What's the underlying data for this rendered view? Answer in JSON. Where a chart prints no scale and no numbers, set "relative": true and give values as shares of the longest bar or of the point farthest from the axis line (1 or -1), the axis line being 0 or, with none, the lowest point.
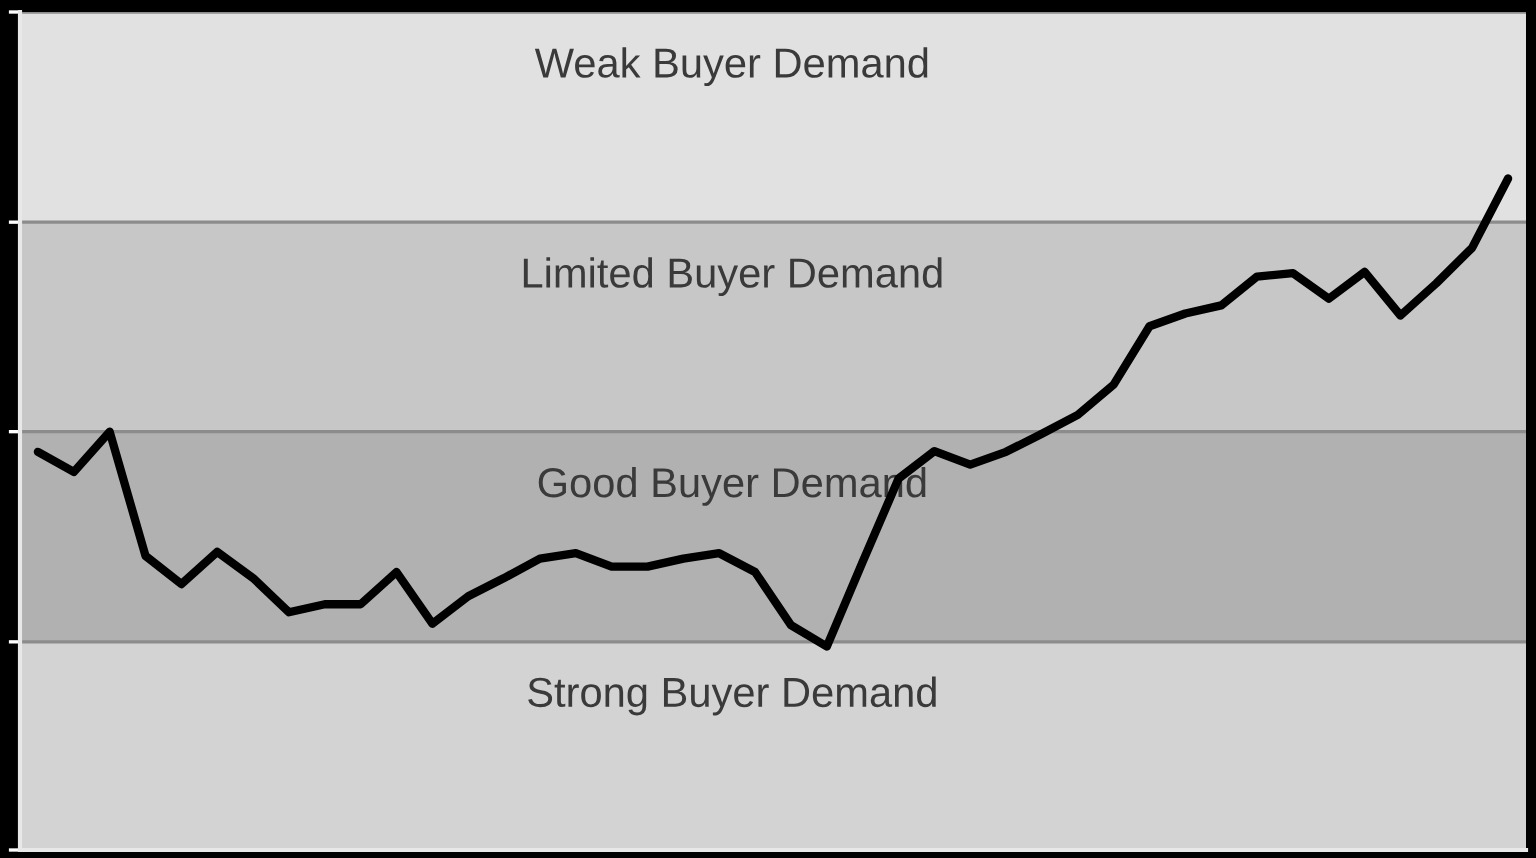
{
  "chart_data": {
    "type": "line",
    "relative": true,
    "line_style": "solid",
    "categories": [
      null,
      null,
      null,
      null,
      null,
      null,
      null,
      null,
      null,
      null,
      null,
      null,
      null,
      null,
      null,
      null,
      null,
      null,
      null,
      null,
      null,
      null,
      null,
      null,
      null,
      null,
      null,
      null,
      null,
      null,
      null,
      null,
      null,
      null,
      null,
      null,
      null,
      null,
      null,
      null,
      null,
      null
    ],
    "series": [
      {
        "color": "#000000",
        "values": [
          0.593,
          0.563,
          0.623,
          0.438,
          0.396,
          0.444,
          0.405,
          0.354,
          0.366,
          0.366,
          0.414,
          0.337,
          0.378,
          0.405,
          0.434,
          0.442,
          0.422,
          0.422,
          0.434,
          0.442,
          0.414,
          0.335,
          0.303,
          0.429,
          0.553,
          0.594,
          0.574,
          0.593,
          0.62,
          0.648,
          0.693,
          0.78,
          0.799,
          0.811,
          0.854,
          0.859,
          0.821,
          0.861,
          0.796,
          0.844,
          0.897,
          1
        ]
      }
    ],
    "bands": [
      {
        "axis": "y",
        "from": 0,
        "to": 0.31,
        "label": "Strong Buyer Demand",
        "color": "#d3d3d3"
      },
      {
        "axis": "y",
        "from": 0.31,
        "to": 0.623,
        "label": "Good Buyer Demand",
        "color": "#b1b1b1"
      },
      {
        "axis": "y",
        "from": 0.623,
        "to": 0.935,
        "label": "Limited Buyer Demand",
        "color": "#c7c7c7"
      },
      {
        "axis": "y",
        "from": 0.935,
        "to": 1.248,
        "label": "Weak Buyer Demand",
        "color": "#e1e1e1"
      }
    ]
  }
}
